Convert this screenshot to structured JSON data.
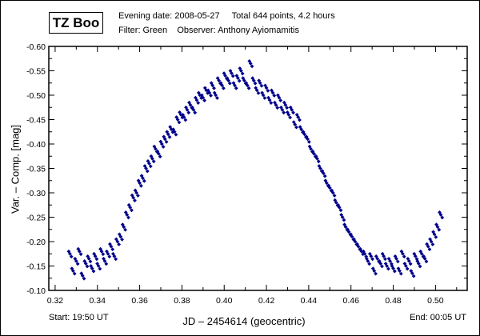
{
  "header": {
    "star": "TZ Boo",
    "line1": "Evening date: 2008-05-27     Total 644 points, 4.2 hours",
    "line2": "Filter: Green    Observer: Anthony Ayiomamitis"
  },
  "footer": {
    "start": "Start: 19:50 UT",
    "end": "End: 00:05 UT"
  },
  "chart_data": {
    "type": "scatter",
    "title": "TZ Boo",
    "xlabel": "JD – 2454614  (geocentric)",
    "ylabel": "Var. – Comp.  [mag]",
    "xlim": [
      0.317,
      0.515
    ],
    "ylim": [
      -0.1,
      -0.6
    ],
    "y_inverted": true,
    "grid": false,
    "marker_color": "#00008B",
    "xticks": [
      "0.32",
      "0.34",
      "0.36",
      "0.38",
      "0.40",
      "0.42",
      "0.44",
      "0.46",
      "0.48",
      "0.50"
    ],
    "yticks": [
      "-0.60",
      "-0.55",
      "-0.50",
      "-0.45",
      "-0.40",
      "-0.35",
      "-0.30",
      "-0.25",
      "-0.20",
      "-0.15",
      "-0.10"
    ],
    "series": [
      {
        "name": "TZ Boo",
        "points": [
          [
            0.327,
            -0.175
          ],
          [
            0.3285,
            -0.14
          ],
          [
            0.33,
            -0.16
          ],
          [
            0.3315,
            -0.18
          ],
          [
            0.333,
            -0.13
          ],
          [
            0.3345,
            -0.155
          ],
          [
            0.336,
            -0.165
          ],
          [
            0.3375,
            -0.145
          ],
          [
            0.339,
            -0.17
          ],
          [
            0.3405,
            -0.15
          ],
          [
            0.342,
            -0.18
          ],
          [
            0.3435,
            -0.16
          ],
          [
            0.345,
            -0.175
          ],
          [
            0.3465,
            -0.19
          ],
          [
            0.348,
            -0.17
          ],
          [
            0.3495,
            -0.2
          ],
          [
            0.351,
            -0.21
          ],
          [
            0.3525,
            -0.23
          ],
          [
            0.354,
            -0.255
          ],
          [
            0.3555,
            -0.27
          ],
          [
            0.357,
            -0.29
          ],
          [
            0.3585,
            -0.3
          ],
          [
            0.36,
            -0.32
          ],
          [
            0.3615,
            -0.33
          ],
          [
            0.363,
            -0.35
          ],
          [
            0.3645,
            -0.36
          ],
          [
            0.366,
            -0.37
          ],
          [
            0.3675,
            -0.39
          ],
          [
            0.369,
            -0.38
          ],
          [
            0.3705,
            -0.4
          ],
          [
            0.372,
            -0.41
          ],
          [
            0.3735,
            -0.42
          ],
          [
            0.375,
            -0.43
          ],
          [
            0.3765,
            -0.425
          ],
          [
            0.378,
            -0.45
          ],
          [
            0.3795,
            -0.46
          ],
          [
            0.381,
            -0.455
          ],
          [
            0.3825,
            -0.47
          ],
          [
            0.384,
            -0.48
          ],
          [
            0.3855,
            -0.47
          ],
          [
            0.387,
            -0.49
          ],
          [
            0.3885,
            -0.5
          ],
          [
            0.39,
            -0.495
          ],
          [
            0.3915,
            -0.51
          ],
          [
            0.393,
            -0.505
          ],
          [
            0.3945,
            -0.52
          ],
          [
            0.396,
            -0.5
          ],
          [
            0.3975,
            -0.53
          ],
          [
            0.399,
            -0.52
          ],
          [
            0.4005,
            -0.54
          ],
          [
            0.402,
            -0.53
          ],
          [
            0.4035,
            -0.545
          ],
          [
            0.405,
            -0.52
          ],
          [
            0.4065,
            -0.535
          ],
          [
            0.408,
            -0.55
          ],
          [
            0.4095,
            -0.53
          ],
          [
            0.411,
            -0.52
          ],
          [
            0.4125,
            -0.565
          ],
          [
            0.414,
            -0.53
          ],
          [
            0.4155,
            -0.51
          ],
          [
            0.417,
            -0.525
          ],
          [
            0.4185,
            -0.5
          ],
          [
            0.42,
            -0.515
          ],
          [
            0.4215,
            -0.49
          ],
          [
            0.423,
            -0.505
          ],
          [
            0.4245,
            -0.48
          ],
          [
            0.426,
            -0.495
          ],
          [
            0.4275,
            -0.47
          ],
          [
            0.429,
            -0.48
          ],
          [
            0.4305,
            -0.46
          ],
          [
            0.432,
            -0.47
          ],
          [
            0.4335,
            -0.44
          ],
          [
            0.435,
            -0.455
          ],
          [
            0.4365,
            -0.43
          ],
          [
            0.438,
            -0.42
          ],
          [
            0.4395,
            -0.41
          ],
          [
            0.441,
            -0.39
          ],
          [
            0.4425,
            -0.38
          ],
          [
            0.444,
            -0.37
          ],
          [
            0.4455,
            -0.35
          ],
          [
            0.447,
            -0.34
          ],
          [
            0.4485,
            -0.32
          ],
          [
            0.45,
            -0.31
          ],
          [
            0.4515,
            -0.3
          ],
          [
            0.453,
            -0.28
          ],
          [
            0.4545,
            -0.27
          ],
          [
            0.456,
            -0.25
          ],
          [
            0.4575,
            -0.23
          ],
          [
            0.459,
            -0.22
          ],
          [
            0.4605,
            -0.21
          ],
          [
            0.462,
            -0.2
          ],
          [
            0.4635,
            -0.19
          ],
          [
            0.465,
            -0.18
          ],
          [
            0.4665,
            -0.175
          ],
          [
            0.468,
            -0.16
          ],
          [
            0.4695,
            -0.17
          ],
          [
            0.471,
            -0.14
          ],
          [
            0.4725,
            -0.165
          ],
          [
            0.474,
            -0.155
          ],
          [
            0.4755,
            -0.17
          ],
          [
            0.477,
            -0.15
          ],
          [
            0.4785,
            -0.16
          ],
          [
            0.48,
            -0.145
          ],
          [
            0.4815,
            -0.165
          ],
          [
            0.483,
            -0.14
          ],
          [
            0.4845,
            -0.175
          ],
          [
            0.486,
            -0.15
          ],
          [
            0.4875,
            -0.16
          ],
          [
            0.489,
            -0.135
          ],
          [
            0.4905,
            -0.17
          ],
          [
            0.492,
            -0.155
          ],
          [
            0.4935,
            -0.175
          ],
          [
            0.495,
            -0.165
          ],
          [
            0.4965,
            -0.19
          ],
          [
            0.498,
            -0.2
          ],
          [
            0.4995,
            -0.215
          ],
          [
            0.501,
            -0.23
          ],
          [
            0.5025,
            -0.255
          ]
        ]
      }
    ]
  }
}
